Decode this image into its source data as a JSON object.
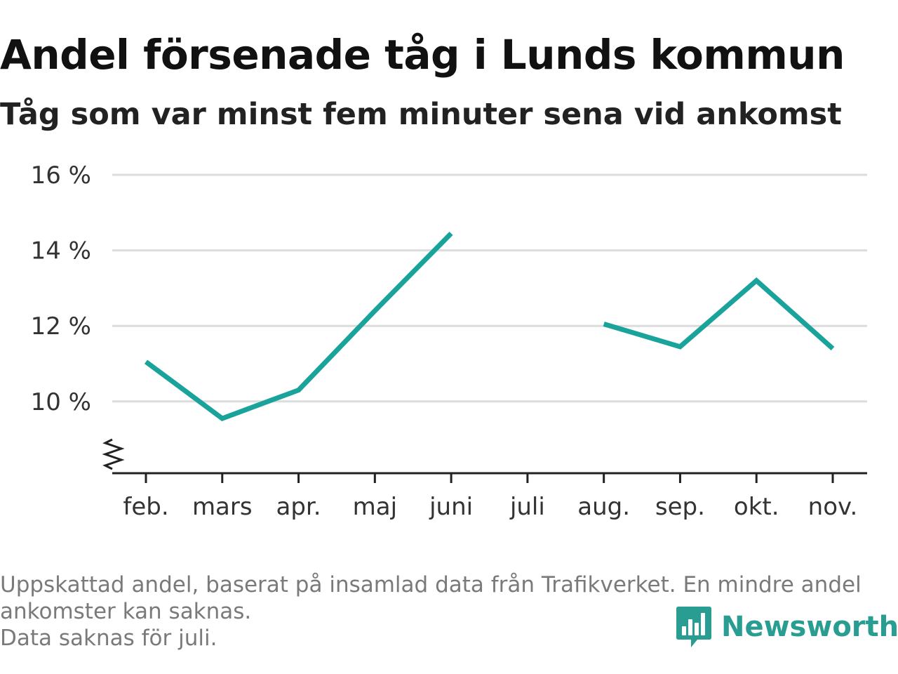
{
  "title": "Andel försenade tåg i Lunds kommun",
  "subtitle": "Tåg som var minst fem minuter sena vid ankomst",
  "colors": {
    "line": "#1aa39a",
    "grid": "#dcdcdc",
    "axis": "#222222",
    "brand": "#2a9d93",
    "note": "#7a7a7a"
  },
  "chart_data": {
    "type": "line",
    "categories": [
      "feb.",
      "mars",
      "apr.",
      "maj",
      "juni",
      "juli",
      "aug.",
      "sep.",
      "okt.",
      "nov."
    ],
    "series": [
      {
        "values": [
          11.05,
          9.55,
          10.3,
          12.4,
          14.45,
          null,
          12.05,
          11.45,
          13.2,
          11.4
        ]
      }
    ],
    "yticks": [
      10,
      12,
      14,
      16
    ],
    "ytick_labels": [
      "10 %",
      "12 %",
      "14 %",
      "16 %"
    ],
    "ylim": [
      8.1,
      16
    ],
    "grid": true,
    "axis_break": true,
    "xlabel": "",
    "ylabel": ""
  },
  "footnote": {
    "line1": "Uppskattad andel, baserat på insamlad data från Trafikverket. En mindre andel ankomster kan saknas.",
    "line2": "Data saknas för juli."
  },
  "brand": {
    "name": "Newsworthy",
    "icon": "bar-chart-speech-bubble-icon"
  }
}
